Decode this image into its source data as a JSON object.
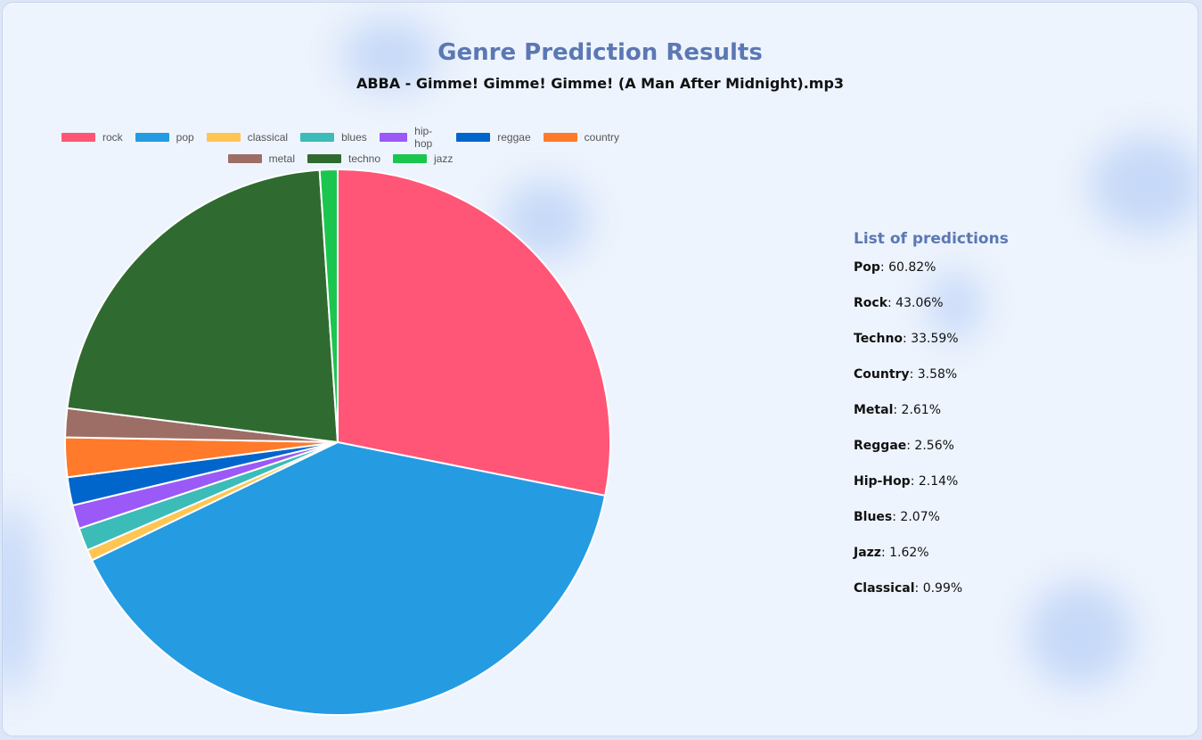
{
  "header": {
    "title": "Genre Prediction Results",
    "subtitle": "ABBA - Gimme! Gimme! Gimme! (A Man After Midnight).mp3"
  },
  "chart_data": {
    "type": "pie",
    "title": "",
    "legend_position": "top",
    "categories": [
      "rock",
      "pop",
      "classical",
      "blues",
      "hip-hop",
      "reggae",
      "country",
      "metal",
      "techno",
      "jazz"
    ],
    "values": [
      43.06,
      60.82,
      0.99,
      2.07,
      2.14,
      2.56,
      3.58,
      2.61,
      33.59,
      1.62
    ],
    "colors": [
      "#ff5577",
      "#259be2",
      "#ffc553",
      "#3bbcb9",
      "#9b59f7",
      "#0066cc",
      "#ff7a2a",
      "#9c6e66",
      "#2f6b30",
      "#1bc64e"
    ]
  },
  "sidebar": {
    "title": "List of predictions",
    "items": [
      {
        "label": "Pop",
        "value": ": 60.82%"
      },
      {
        "label": "Rock",
        "value": ": 43.06%"
      },
      {
        "label": "Techno",
        "value": ": 33.59%"
      },
      {
        "label": "Country",
        "value": ": 3.58%"
      },
      {
        "label": "Metal",
        "value": ": 2.61%"
      },
      {
        "label": "Reggae",
        "value": ": 2.56%"
      },
      {
        "label": "Hip-Hop",
        "value": ": 2.14%"
      },
      {
        "label": "Blues",
        "value": ": 2.07%"
      },
      {
        "label": "Jazz",
        "value": ": 1.62%"
      },
      {
        "label": "Classical",
        "value": ": 0.99%"
      }
    ]
  }
}
